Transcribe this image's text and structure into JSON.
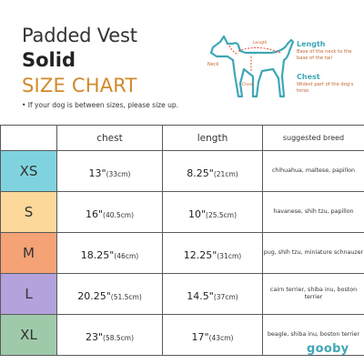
{
  "header": {
    "title_line1": "Padded Vest",
    "title_line2": "Solid",
    "title_line3": "SIZE CHART",
    "note": "• If your dog is between sizes, please size up."
  },
  "diagram": {
    "neck_label": "Neck",
    "length_mark": "Length",
    "chest_mark": "Chest",
    "length_title": "Length",
    "length_desc": "Base of the neck to the base of the tail",
    "chest_title": "Chest",
    "chest_desc": "Widest part of the dog's torso"
  },
  "table": {
    "headers": [
      "",
      "chest",
      "length",
      "suggested breed"
    ],
    "rows": [
      {
        "size": "XS",
        "color": "#7fd3df",
        "chest": "13\"",
        "chest_cm": "(33cm)",
        "length": "8.25\"",
        "length_cm": "(21cm)",
        "breed": "chihuahua, maltese, papillon"
      },
      {
        "size": "S",
        "color": "#fcd89a",
        "chest": "16\"",
        "chest_cm": "(40.5cm)",
        "length": "10\"",
        "length_cm": "(25.5cm)",
        "breed": "havanese, shih tzu, papillon"
      },
      {
        "size": "M",
        "color": "#f5a277",
        "chest": "18.25\"",
        "chest_cm": "(46cm)",
        "length": "12.25\"",
        "length_cm": "(31cm)",
        "breed": "pug, shih tzu, miniature schnauzer"
      },
      {
        "size": "L",
        "color": "#b3a2db",
        "chest": "20.25\"",
        "chest_cm": "(51.5cm)",
        "length": "14.5\"",
        "length_cm": "(37cm)",
        "breed": "cairn terrier, shiba inu, boston terrier"
      },
      {
        "size": "XL",
        "color": "#9fcaaa",
        "chest": "23\"",
        "chest_cm": "(58.5cm)",
        "length": "17\"",
        "length_cm": "(43cm)",
        "breed": "beagle, shiba inu, boston terrier"
      }
    ]
  },
  "brand": {
    "logo": "gooby",
    "accent": "#3fa7b7",
    "orange": "#d08a2b"
  }
}
